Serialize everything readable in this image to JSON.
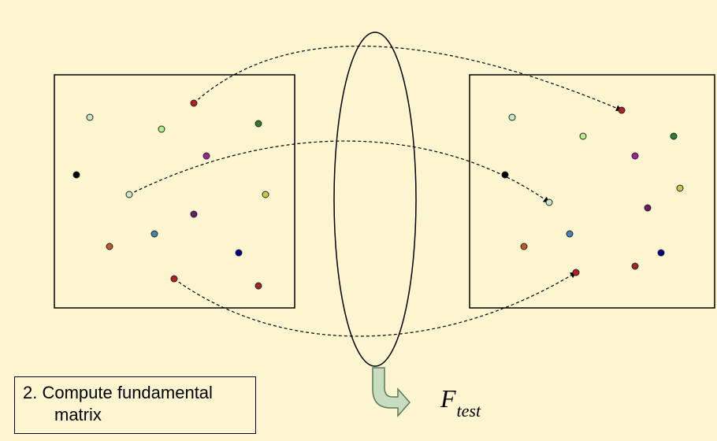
{
  "step": {
    "line1": "2. Compute fundamental",
    "line2": "matrix"
  },
  "result": {
    "symbol": "F",
    "subscript": "test"
  },
  "left_points": [
    {
      "color": "#c8e6c9"
    },
    {
      "color": "#b22222"
    },
    {
      "color": "#b2f08c"
    },
    {
      "color": "#2e7d32"
    },
    {
      "color": "#a020a0"
    },
    {
      "color": "#000000"
    },
    {
      "color": "#c8e6c9"
    },
    {
      "color": "#c8c850"
    },
    {
      "color": "#6a1b6a"
    },
    {
      "color": "#4682b4"
    },
    {
      "color": "#b85c28"
    },
    {
      "color": "#00008b"
    },
    {
      "color": "#b22222"
    },
    {
      "color": "#a0282d"
    }
  ],
  "right_points": [
    {
      "color": "#c8e6c9"
    },
    {
      "color": "#b22222"
    },
    {
      "color": "#b2f08c"
    },
    {
      "color": "#2e7d32"
    },
    {
      "color": "#a020a0"
    },
    {
      "color": "#000000"
    },
    {
      "color": "#c8e6c9"
    },
    {
      "color": "#c8c850"
    },
    {
      "color": "#6a1b6a"
    },
    {
      "color": "#4682b4"
    },
    {
      "color": "#b85c28"
    },
    {
      "color": "#00008b"
    },
    {
      "color": "#b22222"
    },
    {
      "color": "#a0282d"
    }
  ],
  "colors": {
    "background": "#fdf5cf",
    "arrow_fill": "#c8dcc0",
    "arrow_stroke": "#5a7a5a"
  }
}
